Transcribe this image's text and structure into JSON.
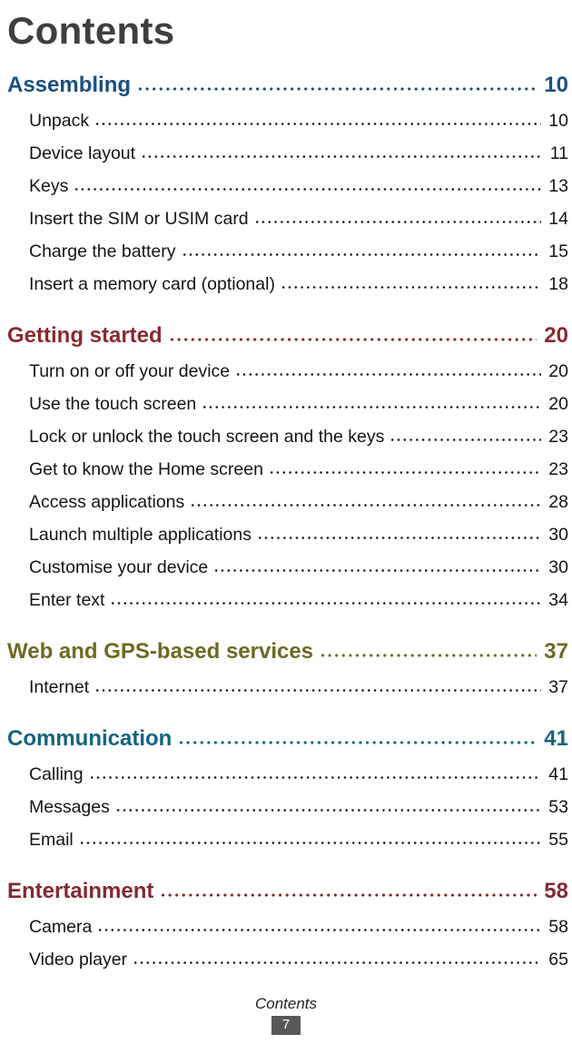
{
  "page": {
    "title": "Contents",
    "footer_label": "Contents",
    "page_number": "7"
  },
  "colors": {
    "title_text": "#3f3f41",
    "entry_text": "#141414",
    "footer_badge_bg": "#57585a"
  },
  "sections": [
    {
      "title": "Assembling",
      "page": "10",
      "color": "#1c4f82",
      "items": [
        {
          "title": "Unpack",
          "page": "10"
        },
        {
          "title": "Device layout",
          "page": "11"
        },
        {
          "title": "Keys",
          "page": "13"
        },
        {
          "title": "Insert the SIM or USIM card",
          "page": "14"
        },
        {
          "title": "Charge the battery",
          "page": "15"
        },
        {
          "title": "Insert a memory card (optional)",
          "page": "18"
        }
      ]
    },
    {
      "title": "Getting started",
      "page": "20",
      "color": "#8a2a2e",
      "items": [
        {
          "title": "Turn on or off your device",
          "page": "20"
        },
        {
          "title": "Use the touch screen",
          "page": "20"
        },
        {
          "title": "Lock or unlock the touch screen and the keys",
          "page": "23"
        },
        {
          "title": "Get to know the Home screen",
          "page": "23"
        },
        {
          "title": "Access applications",
          "page": "28"
        },
        {
          "title": "Launch multiple applications",
          "page": "30"
        },
        {
          "title": "Customise your device",
          "page": "30"
        },
        {
          "title": "Enter text",
          "page": "34"
        }
      ]
    },
    {
      "title": "Web and GPS-based services",
      "page": "37",
      "color": "#6d6a22",
      "items": [
        {
          "title": "Internet",
          "page": "37"
        }
      ]
    },
    {
      "title": "Communication",
      "page": "41",
      "color": "#14647e",
      "items": [
        {
          "title": "Calling",
          "page": "41"
        },
        {
          "title": "Messages",
          "page": "53"
        },
        {
          "title": "Email",
          "page": "55"
        }
      ]
    },
    {
      "title": "Entertainment",
      "page": "58",
      "color": "#822a33",
      "items": [
        {
          "title": "Camera",
          "page": "58"
        },
        {
          "title": "Video player",
          "page": "65"
        }
      ]
    }
  ]
}
